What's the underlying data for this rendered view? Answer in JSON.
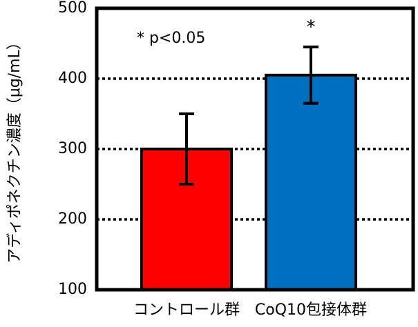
{
  "chart_data": {
    "type": "bar",
    "y_label": "アディポネクチン濃度（μg/mL）",
    "categories": [
      "コントロール群",
      "CoQ10包接体群"
    ],
    "values": [
      300,
      405
    ],
    "errors": [
      50,
      40
    ],
    "colors": [
      "#ff0000",
      "#0070c0"
    ],
    "ylim": [
      100,
      500
    ],
    "yticks": [
      100,
      200,
      300,
      400,
      500
    ],
    "grid": true,
    "annotations": [
      "* p<0.05",
      "*"
    ]
  }
}
